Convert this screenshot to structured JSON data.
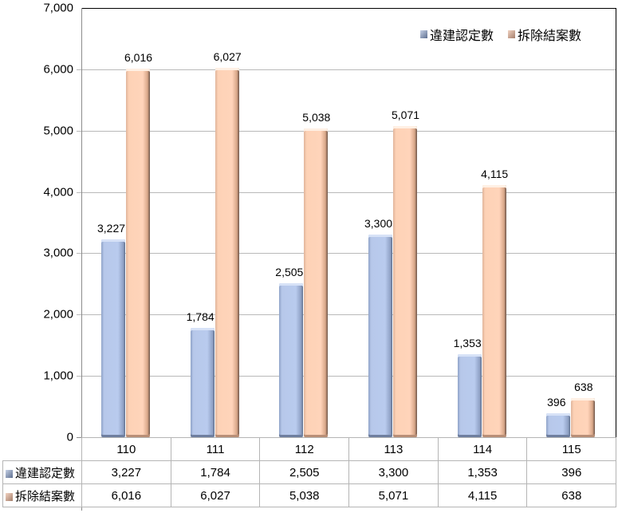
{
  "chart_data": {
    "type": "bar",
    "title": "",
    "xlabel": "",
    "ylabel": "",
    "categories": [
      "110",
      "111",
      "112",
      "113",
      "114",
      "115"
    ],
    "series": [
      {
        "name": "違建認定數",
        "values": [
          3227,
          1784,
          2505,
          3300,
          1353,
          396
        ],
        "labels": [
          "3,227",
          "1,784",
          "2,505",
          "3,300",
          "1,353",
          "396"
        ],
        "color": "#b9cbee"
      },
      {
        "name": "拆除結案數",
        "values": [
          6016,
          6027,
          5038,
          5071,
          4115,
          638
        ],
        "labels": [
          "6,016",
          "6,027",
          "5,038",
          "5,071",
          "4,115",
          "638"
        ],
        "color": "#ffd4ba"
      }
    ],
    "ylim": [
      0,
      7000
    ],
    "yticks": [
      "0",
      "1,000",
      "2,000",
      "3,000",
      "4,000",
      "5,000",
      "6,000",
      "7,000"
    ],
    "grid": true,
    "legend_position": "top-right",
    "data_table": true
  },
  "legend": {
    "items": [
      "違建認定數",
      "拆除結案數"
    ]
  }
}
